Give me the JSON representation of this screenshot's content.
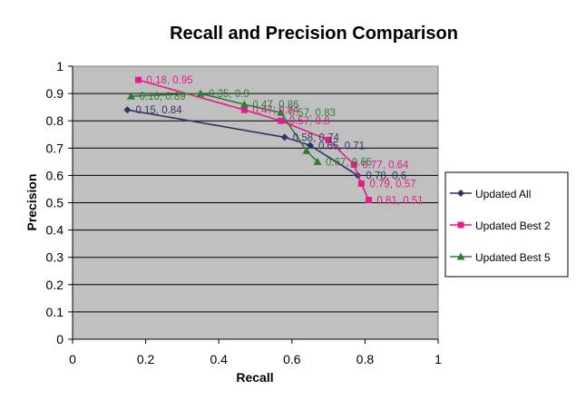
{
  "chart_data": {
    "type": "line",
    "title": "Recall and Precision Comparison",
    "xlabel": "Recall",
    "ylabel": "Precision",
    "xlim": [
      0,
      1
    ],
    "ylim": [
      0,
      1
    ],
    "x_ticks": [
      "0",
      "0.2",
      "0.4",
      "0.6",
      "0.8",
      "1"
    ],
    "y_ticks": [
      "0",
      "0.1",
      "0.2",
      "0.3",
      "0.4",
      "0.5",
      "0.6",
      "0.7",
      "0.8",
      "0.9",
      "1"
    ],
    "grid": "horizontal",
    "legend_position": "right",
    "plot_background": "#c0c0c0",
    "series": [
      {
        "name": "Updated All",
        "color": "#333366",
        "marker": "diamond",
        "points": [
          [
            0.15,
            0.84
          ],
          [
            0.58,
            0.74
          ],
          [
            0.65,
            0.71
          ],
          [
            0.78,
            0.6
          ]
        ],
        "labels": [
          "0.15, 0.84",
          "0.58, 0.74",
          "0.65, 0.71",
          "0.78, 0.6"
        ]
      },
      {
        "name": "Updated Best 2",
        "color": "#e61b8c",
        "marker": "square",
        "points": [
          [
            0.18,
            0.95
          ],
          [
            0.47,
            0.84
          ],
          [
            0.57,
            0.8
          ],
          [
            0.7,
            0.73
          ],
          [
            0.77,
            0.64
          ],
          [
            0.79,
            0.57
          ],
          [
            0.81,
            0.51
          ]
        ],
        "labels": [
          "0.18, 0.95",
          "0.47, 0.84",
          "0.57, 0.8",
          "",
          "0.77, 0.64",
          "0.79, 0.57",
          "0.81, 0.51"
        ]
      },
      {
        "name": "Updated Best 5",
        "color": "#2e7d32",
        "marker": "triangle",
        "points": [
          [
            0.16,
            0.89
          ],
          [
            0.35,
            0.9
          ],
          [
            0.47,
            0.86
          ],
          [
            0.57,
            0.83
          ],
          [
            0.64,
            0.69
          ],
          [
            0.67,
            0.65
          ]
        ],
        "labels": [
          "0.16, 0.89",
          "0.35, 0.9",
          "0.47, 0.86",
          "0.57, 0.83",
          "",
          "0.67, 0.65"
        ]
      }
    ]
  }
}
